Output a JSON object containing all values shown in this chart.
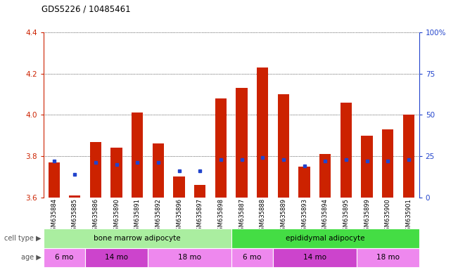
{
  "title": "GDS5226 / 10485461",
  "samples": [
    "GSM635884",
    "GSM635885",
    "GSM635886",
    "GSM635890",
    "GSM635891",
    "GSM635892",
    "GSM635896",
    "GSM635897",
    "GSM635898",
    "GSM635887",
    "GSM635888",
    "GSM635889",
    "GSM635893",
    "GSM635894",
    "GSM635895",
    "GSM635899",
    "GSM635900",
    "GSM635901"
  ],
  "bar_values": [
    3.77,
    3.61,
    3.87,
    3.84,
    4.01,
    3.86,
    3.7,
    3.66,
    4.08,
    4.13,
    4.23,
    4.1,
    3.75,
    3.81,
    4.06,
    3.9,
    3.93,
    4.0
  ],
  "percentile_pct": [
    22,
    14,
    21,
    20,
    21,
    21,
    16,
    16,
    23,
    23,
    24,
    23,
    19,
    22,
    23,
    22,
    22,
    23
  ],
  "ymin": 3.6,
  "ymax": 4.4,
  "yticks": [
    3.6,
    3.8,
    4.0,
    4.2,
    4.4
  ],
  "right_yticks": [
    0,
    25,
    50,
    75,
    100
  ],
  "right_ytick_labels": [
    "0",
    "25",
    "50",
    "75",
    "100%"
  ],
  "bar_color": "#cc2200",
  "percentile_color": "#2244cc",
  "cell_type_groups": [
    {
      "label": "bone marrow adipocyte",
      "start": 0,
      "end": 8,
      "color": "#aaeea0"
    },
    {
      "label": "epididymal adipocyte",
      "start": 9,
      "end": 17,
      "color": "#44dd44"
    }
  ],
  "age_groups": [
    {
      "label": "6 mo",
      "start": 0,
      "end": 1,
      "color": "#ee99ee"
    },
    {
      "label": "14 mo",
      "start": 2,
      "end": 4,
      "color": "#cc44cc"
    },
    {
      "label": "18 mo",
      "start": 5,
      "end": 8,
      "color": "#ee99ee"
    },
    {
      "label": "6 mo",
      "start": 9,
      "end": 10,
      "color": "#ee99ee"
    },
    {
      "label": "14 mo",
      "start": 11,
      "end": 14,
      "color": "#cc44cc"
    },
    {
      "label": "18 mo",
      "start": 15,
      "end": 17,
      "color": "#ee99ee"
    }
  ],
  "tick_color_left": "#cc2200",
  "tick_color_right": "#2244cc",
  "grid_color": "#000000",
  "bg_color": "#ffffff"
}
